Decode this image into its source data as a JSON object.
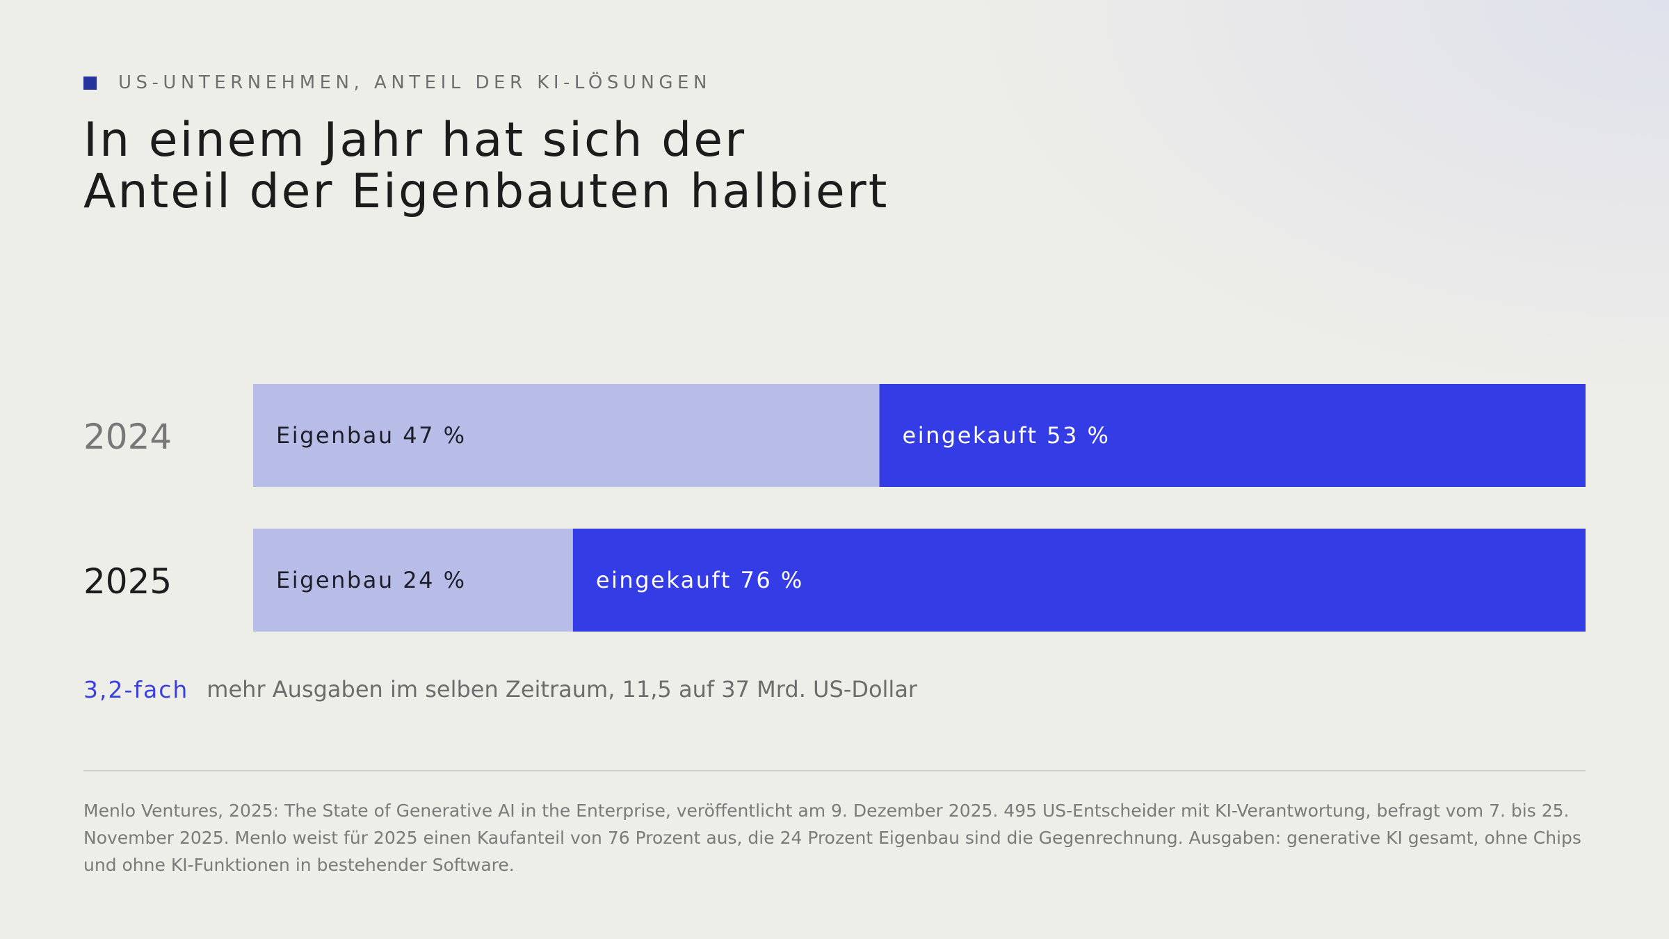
{
  "header": {
    "kicker": "US-UNTERNEHMEN, ANTEIL DER KI-LÖSUNGEN",
    "title": "In einem Jahr hat sich der Anteil der Eigenbauten halbiert"
  },
  "colors": {
    "accent_square": "#26339c",
    "eigenbau": "#b8bde8",
    "eingekauft": "#343ce6",
    "stat_accent": "#3a3fe0"
  },
  "chart_data": {
    "type": "bar",
    "orientation": "horizontal",
    "stacked": true,
    "percent_stacked": true,
    "categories": [
      "2024",
      "2025"
    ],
    "series": [
      {
        "name": "Eigenbau",
        "values": [
          47,
          24
        ],
        "color": "#b8bde8"
      },
      {
        "name": "eingekauft",
        "values": [
          53,
          76
        ],
        "color": "#343ce6"
      }
    ],
    "segment_labels": [
      [
        "Eigenbau 47 %",
        "eingekauft 53 %"
      ],
      [
        "Eigenbau 24 %",
        "eingekauft 76 %"
      ]
    ],
    "xlim": [
      0,
      100
    ],
    "grid": false,
    "legend": "none"
  },
  "stat": {
    "value": "3,2-fach",
    "text": "mehr Ausgaben im selben Zeitraum, 11,5 auf 37 Mrd. US-Dollar"
  },
  "source": "Menlo Ventures, 2025: The State of Generative AI in the Enterprise, veröffentlicht am 9. Dezember 2025. 495 US-Entscheider mit KI-Verantwortung, befragt vom 7. bis 25. November 2025. Menlo weist für 2025 einen Kaufanteil von 76 Prozent aus, die 24 Prozent Eigenbau sind die Gegenrechnung. Ausgaben: generative KI gesamt, ohne Chips und ohne KI-Funktionen in bestehender Software."
}
